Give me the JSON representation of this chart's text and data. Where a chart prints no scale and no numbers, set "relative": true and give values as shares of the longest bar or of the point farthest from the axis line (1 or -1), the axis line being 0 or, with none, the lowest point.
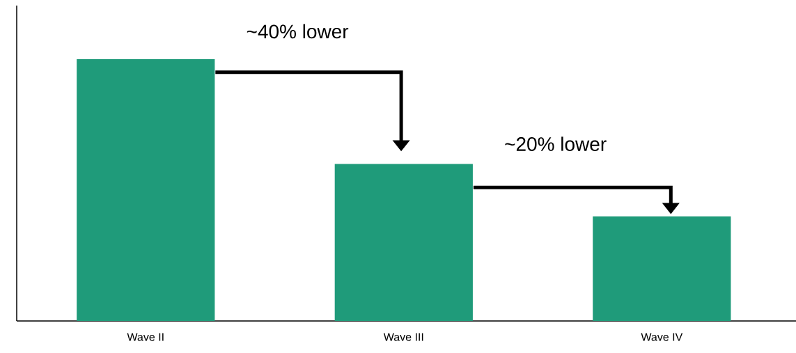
{
  "chart_data": {
    "type": "bar",
    "categories": [
      "Wave II",
      "Wave III",
      "Wave IV"
    ],
    "values": [
      1,
      0.6,
      0.4
    ],
    "color": "#1f9b7a",
    "relative": true,
    "annotations": [
      "~40% lower",
      "~20% lower"
    ]
  }
}
